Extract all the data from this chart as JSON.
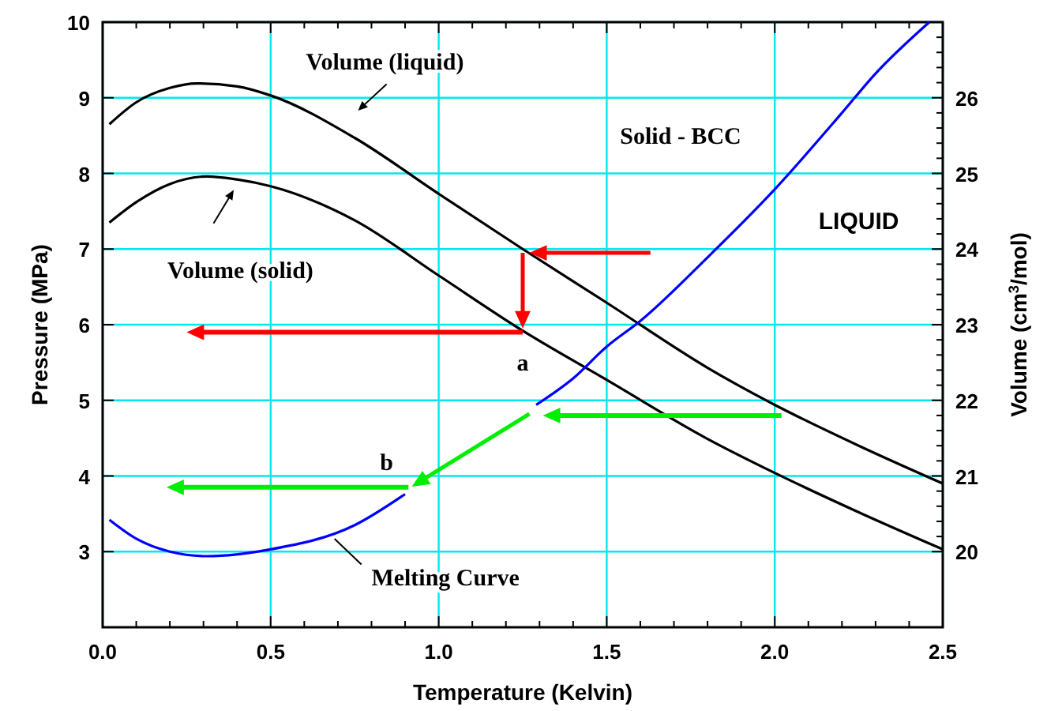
{
  "chart_data": {
    "type": "line",
    "xlabel": "Temperature (Kelvin)",
    "ylabel": "Pressure (MPa)",
    "y2label": "Volume (cm$^{3}$/mol)",
    "xlim": [
      0,
      2.5
    ],
    "xticks": [
      {
        "value": 0,
        "label": "0.0"
      },
      {
        "value": 0.1,
        "label": null
      },
      {
        "value": 0.2,
        "label": null
      },
      {
        "value": 0.3,
        "label": null
      },
      {
        "value": 0.4,
        "label": null
      },
      0.5,
      {
        "value": 0.6,
        "label": null
      },
      {
        "value": 0.7,
        "label": null
      },
      {
        "value": 0.8,
        "label": null
      },
      {
        "value": 0.9,
        "label": null
      },
      {
        "value": 1,
        "label": "1.0"
      },
      {
        "value": 1.1,
        "label": null
      },
      {
        "value": 1.2,
        "label": null
      },
      {
        "value": 1.3,
        "label": null
      },
      {
        "value": 1.4,
        "label": null
      },
      1.5,
      {
        "value": 1.6,
        "label": null
      },
      {
        "value": 1.7,
        "label": null
      },
      {
        "value": 1.8,
        "label": null
      },
      {
        "value": 1.9,
        "label": null
      },
      {
        "value": 2,
        "label": "2.0"
      },
      {
        "value": 2.1,
        "label": null
      },
      {
        "value": 2.2,
        "label": null
      },
      {
        "value": 2.3,
        "label": null
      },
      {
        "value": 2.4,
        "label": null
      },
      2.5
    ],
    "ylim": [
      2,
      10
    ],
    "yticks": [
      3,
      4,
      5,
      6,
      7,
      8,
      9,
      10
    ],
    "y2lim": [
      19,
      27
    ],
    "y2ticks": [
      20,
      {
        "value": 20.2,
        "label": null
      },
      {
        "value": 20.4,
        "label": null
      },
      {
        "value": 20.6,
        "label": null
      },
      {
        "value": 20.8,
        "label": null
      },
      21,
      {
        "value": 21.2,
        "label": null
      },
      {
        "value": 21.4,
        "label": null
      },
      {
        "value": 21.6,
        "label": null
      },
      {
        "value": 21.8,
        "label": null
      },
      22,
      {
        "value": 22.2,
        "label": null
      },
      {
        "value": 22.4,
        "label": null
      },
      {
        "value": 22.6,
        "label": null
      },
      {
        "value": 22.8,
        "label": null
      },
      23,
      {
        "value": 23.2,
        "label": null
      },
      {
        "value": 23.4,
        "label": null
      },
      {
        "value": 23.6,
        "label": null
      },
      {
        "value": 23.8,
        "label": null
      },
      24,
      {
        "value": 24.2,
        "label": null
      },
      {
        "value": 24.4,
        "label": null
      },
      {
        "value": 24.6,
        "label": null
      },
      {
        "value": 24.8,
        "label": null
      },
      25,
      {
        "value": 25.2,
        "label": null
      },
      {
        "value": 25.4,
        "label": null
      },
      {
        "value": 25.6,
        "label": null
      },
      {
        "value": 25.8,
        "label": null
      },
      26,
      {
        "value": 26.2,
        "label": null
      },
      {
        "value": 26.4,
        "label": null
      },
      {
        "value": 26.6,
        "label": null
      },
      {
        "value": 26.8,
        "label": null
      }
    ],
    "grid": true,
    "marker": "none",
    "line_style": "solid",
    "series": [
      {
        "color": "#000000",
        "axis": "y2",
        "x": [
          0.02,
          0.1,
          0.2,
          0.28,
          0.4,
          0.5,
          0.75,
          1.0,
          1.25,
          1.5,
          1.8,
          2.0,
          2.25,
          2.5
        ],
        "values": [
          25.65,
          25.94,
          26.13,
          26.19,
          26.15,
          26.03,
          25.47,
          24.73,
          24.0,
          23.29,
          22.43,
          21.94,
          21.4,
          20.9
        ]
      },
      {
        "color": "#000000",
        "axis": "y2",
        "x": [
          0.02,
          0.1,
          0.2,
          0.31,
          0.4,
          0.5,
          0.75,
          1.0,
          1.25,
          1.5,
          1.8,
          2.0,
          2.25,
          2.5
        ],
        "values": [
          24.35,
          24.62,
          24.86,
          24.96,
          24.92,
          24.83,
          24.38,
          23.65,
          22.92,
          22.27,
          21.49,
          21.04,
          20.52,
          20.03
        ]
      },
      {
        "color": "#0000ff",
        "x": [
          0.02,
          0.1,
          0.2,
          0.31,
          0.5,
          0.75,
          0.9,
          1.1,
          1.29,
          1.4,
          1.5,
          1.6,
          1.8,
          2.0,
          2.2,
          2.3,
          2.46
        ],
        "values": [
          3.42,
          3.17,
          3.0,
          2.94,
          3.03,
          3.35,
          3.76,
          null,
          4.94,
          5.29,
          5.71,
          6.05,
          6.89,
          7.79,
          8.8,
          9.32,
          10.0
        ]
      }
    ],
    "annotations": [
      "a",
      "b",
      "Solid - BCC",
      "LIQUID",
      {
        "text": "Melting Curve",
        "x": 0.69,
        "y": 3.17
      },
      "Volume (liquid)",
      "Volume (solid)"
    ]
  }
}
